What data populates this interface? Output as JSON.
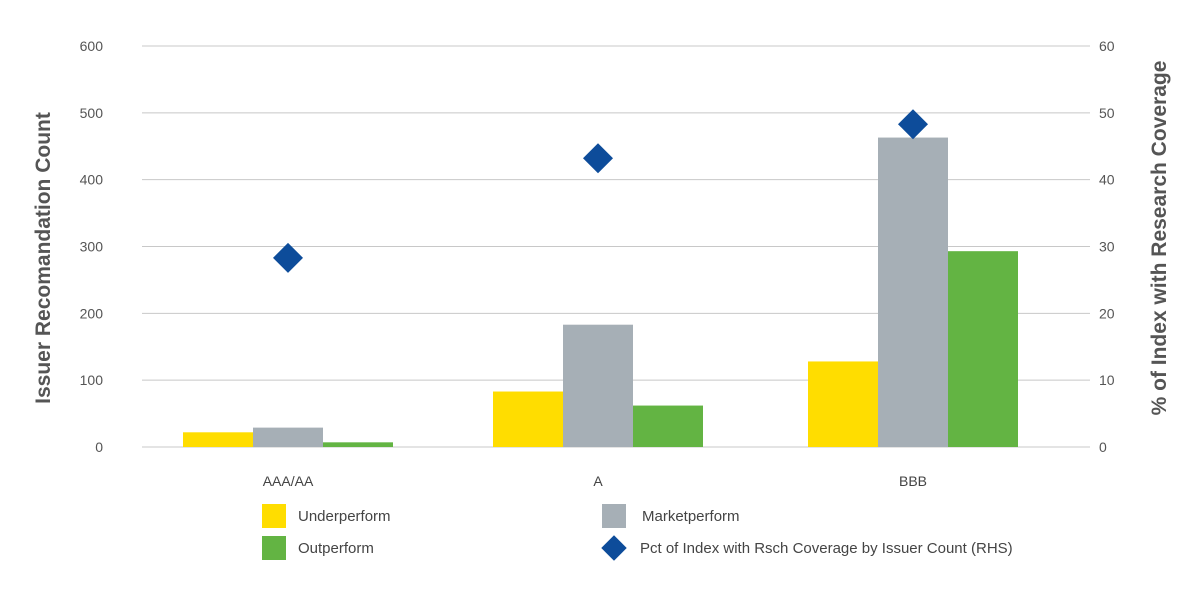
{
  "chart_data": {
    "type": "bar",
    "categories": [
      "AAA/AA",
      "A",
      "BBB"
    ],
    "series": [
      {
        "name": "Underperform",
        "kind": "bar",
        "axis": "left",
        "color": "#FFDD00",
        "values": [
          22,
          83,
          128
        ]
      },
      {
        "name": "Marketperform",
        "kind": "bar",
        "axis": "left",
        "color": "#A6AFB6",
        "values": [
          29,
          183,
          463
        ]
      },
      {
        "name": "Outperform",
        "kind": "bar",
        "axis": "left",
        "color": "#63B443",
        "values": [
          7,
          62,
          293
        ]
      },
      {
        "name": "Pct of Index with Rsch Coverage by Issuer Count (RHS)",
        "kind": "scatter",
        "marker": "diamond",
        "axis": "right",
        "color": "#0D4C9A",
        "values": [
          28.3,
          43.2,
          48.3
        ]
      }
    ],
    "ylabel": "Issuer Recomandation Count",
    "y2label": "% of Index with Research Coverage",
    "ylim": [
      0,
      600
    ],
    "y2lim": [
      0,
      60
    ],
    "yticks": [
      "0",
      "100",
      "200",
      "300",
      "400",
      "500",
      "600"
    ],
    "y2ticks": [
      "0",
      "10",
      "20",
      "30",
      "40",
      "50",
      "60"
    ],
    "grid": true,
    "legend_position": "bottom"
  }
}
